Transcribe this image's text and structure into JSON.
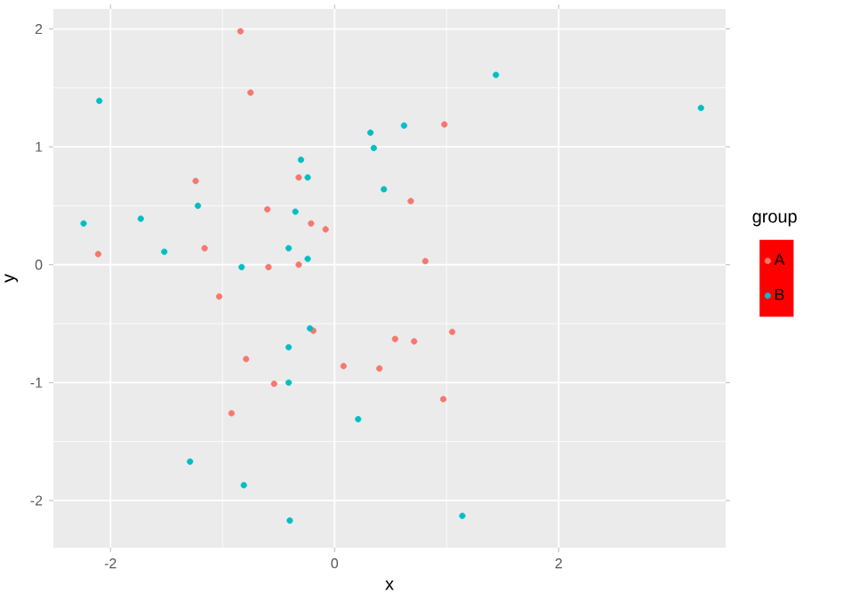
{
  "chart_data": {
    "type": "scatter",
    "xlabel": "x",
    "ylabel": "y",
    "legend_title": "group",
    "xlim": [
      -2.51,
      3.49
    ],
    "ylim": [
      -2.4,
      2.17
    ],
    "xticks": [
      -2,
      0,
      2
    ],
    "yticks": [
      -2,
      -1,
      0,
      1,
      2
    ],
    "grid": true,
    "legend": "right",
    "marker": "circle",
    "series": [
      {
        "name": "A",
        "color": "#f8766d",
        "x": [
          -0.84,
          -0.75,
          -1.24,
          -0.6,
          -1.16,
          -2.11,
          -0.32,
          -0.21,
          -0.08,
          -0.59,
          -0.32,
          0.98,
          0.68,
          0.81,
          -1.03,
          -0.19,
          0.54,
          -0.79,
          -0.54,
          0.08,
          0.4,
          -0.92,
          0.71,
          1.05,
          0.97
        ],
        "values": [
          1.98,
          1.46,
          0.71,
          0.47,
          0.14,
          0.09,
          0.74,
          0.35,
          0.3,
          -0.02,
          0.0,
          1.19,
          0.54,
          0.03,
          -0.27,
          -0.56,
          -0.63,
          -0.8,
          -1.01,
          -0.86,
          -0.88,
          -1.26,
          -0.65,
          -0.57,
          -1.14
        ]
      },
      {
        "name": "B",
        "color": "#00bfc4",
        "x": [
          -2.1,
          -2.24,
          -1.73,
          -1.52,
          -1.22,
          -0.83,
          -0.41,
          -0.24,
          -0.35,
          -0.3,
          -0.24,
          0.32,
          0.35,
          0.44,
          0.62,
          1.44,
          3.27,
          -0.22,
          -0.41,
          -0.41,
          0.21,
          -1.29,
          -0.81,
          -0.4,
          1.14
        ],
        "values": [
          1.39,
          0.35,
          0.39,
          0.11,
          0.5,
          -0.02,
          0.14,
          0.05,
          0.45,
          0.89,
          0.74,
          1.12,
          0.99,
          0.64,
          1.18,
          1.61,
          1.33,
          -0.54,
          -0.7,
          -1.0,
          -1.31,
          -1.67,
          -1.87,
          -2.17,
          -2.13
        ]
      }
    ]
  }
}
